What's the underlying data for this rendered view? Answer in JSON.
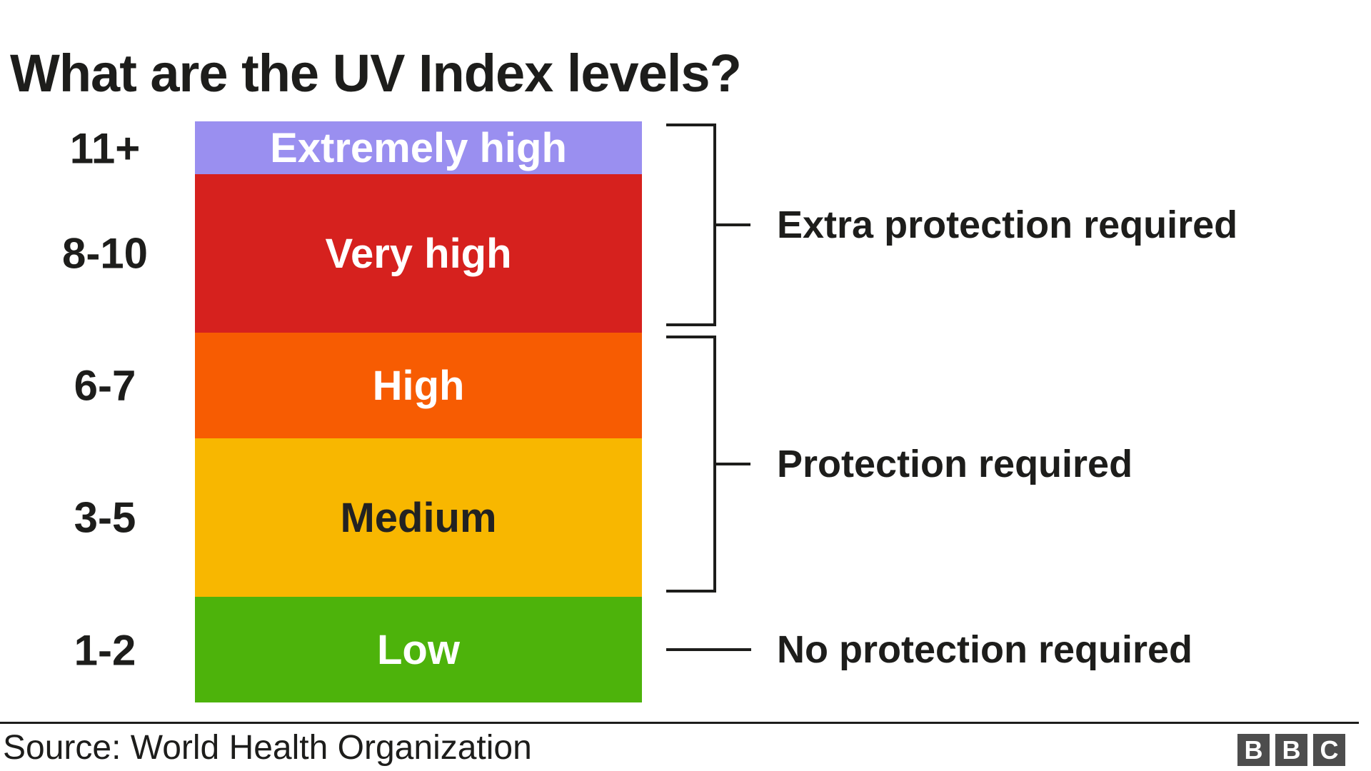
{
  "title": "What are the UV Index levels?",
  "chart_data": {
    "type": "bar",
    "title": "What are the UV Index levels?",
    "subtype": "stacked-color-scale",
    "legend_position": "none",
    "grid": false,
    "axis": {
      "categories": [
        "11+",
        "8-10",
        "6-7",
        "3-5",
        "1-2"
      ],
      "scale_units_total": 11
    },
    "bands": [
      {
        "range": "11+",
        "label": "Extremely high",
        "uv_units": 1,
        "color": "#9a8ff0",
        "text_color": "#ffffff"
      },
      {
        "range": "8-10",
        "label": "Very high",
        "uv_units": 3,
        "color": "#d6211e",
        "text_color": "#ffffff"
      },
      {
        "range": "6-7",
        "label": "High",
        "uv_units": 2,
        "color": "#f75c02",
        "text_color": "#ffffff"
      },
      {
        "range": "3-5",
        "label": "Medium",
        "uv_units": 3,
        "color": "#f8b700",
        "text_color": "#222222"
      },
      {
        "range": "1-2",
        "label": "Low",
        "uv_units": 2,
        "color": "#4db30b",
        "text_color": "#ffffff"
      }
    ],
    "annotations": [
      {
        "label": "Extra protection required",
        "covers": [
          "11+",
          "8-10"
        ]
      },
      {
        "label": "Protection required",
        "covers": [
          "6-7",
          "3-5"
        ]
      },
      {
        "label": "No protection required",
        "covers": [
          "1-2"
        ]
      }
    ],
    "line_color": "#1d1d1b"
  },
  "footer": {
    "source": "Source: World Health Organization",
    "logo_letters": [
      "B",
      "B",
      "C"
    ],
    "logo_color": "#4d4d4d"
  }
}
